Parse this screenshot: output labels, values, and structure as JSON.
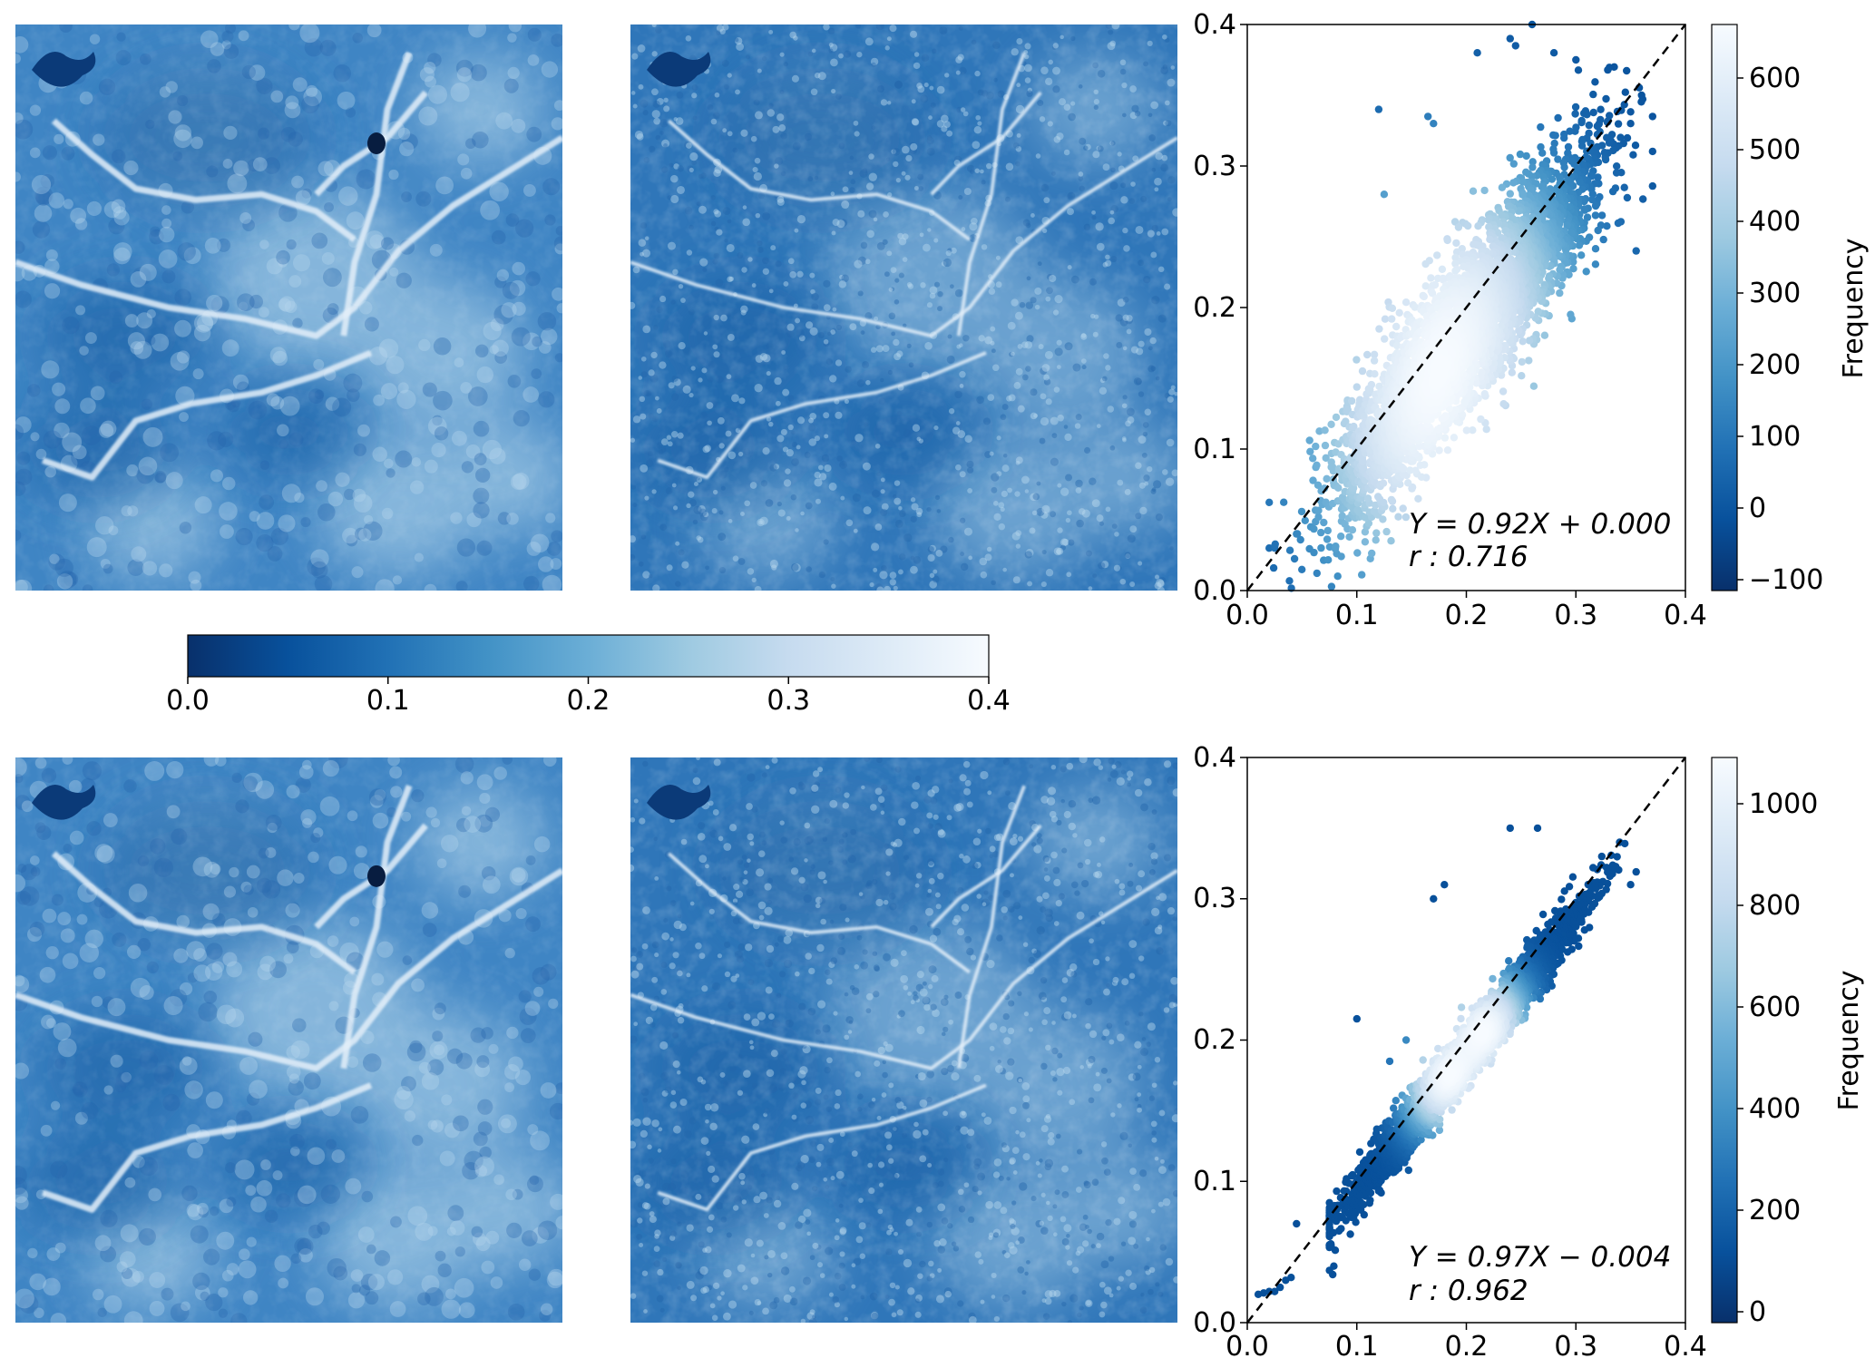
{
  "figure": {
    "shared_colorbar": {
      "ticks": [
        "0.0",
        "0.1",
        "0.2",
        "0.3",
        "0.4"
      ],
      "cmap": "Blues_r",
      "colors": [
        "#08306b",
        "#08519c",
        "#2171b5",
        "#4292c6",
        "#6baed6",
        "#9ecae1",
        "#c6dbef",
        "#deebf7",
        "#f7fbff"
      ]
    },
    "rows": [
      {
        "maps": [
          "predicted-map",
          "reference-map"
        ],
        "scatter": {
          "xticks": [
            "0.0",
            "0.1",
            "0.2",
            "0.3",
            "0.4"
          ],
          "yticks": [
            "0.0",
            "0.1",
            "0.2",
            "0.3",
            "0.4"
          ],
          "equation": "Y = 0.92X + 0.000",
          "r_text": "r : 0.716",
          "colorbar_label": "Frequency",
          "colorbar_ticks": [
            "−100",
            "0",
            "100",
            "200",
            "300",
            "400",
            "500",
            "600"
          ]
        }
      },
      {
        "maps": [
          "predicted-map",
          "reference-map"
        ],
        "scatter": {
          "xticks": [
            "0.0",
            "0.1",
            "0.2",
            "0.3",
            "0.4"
          ],
          "yticks": [
            "0.0",
            "0.1",
            "0.2",
            "0.3",
            "0.4"
          ],
          "equation": "Y = 0.97X − 0.004",
          "r_text": "r : 0.962",
          "colorbar_label": "Frequency",
          "colorbar_ticks": [
            "0",
            "200",
            "400",
            "600",
            "800",
            "1000"
          ]
        }
      }
    ]
  },
  "chart_data": [
    {
      "type": "scatter",
      "title": "",
      "xlabel": "",
      "ylabel": "",
      "xlim": [
        0.0,
        0.4
      ],
      "ylim": [
        0.0,
        0.4
      ],
      "grid": false,
      "reference_line": {
        "style": "dashed",
        "color": "#000000",
        "from": [
          0.0,
          0.0
        ],
        "to": [
          0.4,
          0.4
        ]
      },
      "fit": {
        "slope": 0.92,
        "intercept": 0.0,
        "r": 0.716
      },
      "density_colorbar": {
        "label": "Frequency",
        "range": [
          -120,
          680
        ]
      },
      "x_range": [
        0.02,
        0.37
      ],
      "spread": 0.028,
      "cores": [
        [
          0.2,
          0.21
        ],
        [
          0.15,
          0.1
        ]
      ],
      "outliers": [
        [
          0.02,
          0.03
        ],
        [
          0.025,
          0.03
        ],
        [
          0.045,
          0.04
        ],
        [
          0.058,
          0.045
        ],
        [
          0.065,
          0.052
        ],
        [
          0.165,
          0.335
        ],
        [
          0.17,
          0.33
        ],
        [
          0.21,
          0.38
        ],
        [
          0.24,
          0.39
        ],
        [
          0.245,
          0.385
        ],
        [
          0.26,
          0.4
        ],
        [
          0.28,
          0.38
        ],
        [
          0.3,
          0.375
        ],
        [
          0.35,
          0.33
        ],
        [
          0.36,
          0.35
        ],
        [
          0.355,
          0.24
        ],
        [
          0.37,
          0.335
        ],
        [
          0.335,
          0.37
        ],
        [
          0.31,
          0.3
        ],
        [
          0.12,
          0.34
        ],
        [
          0.125,
          0.28
        ]
      ]
    },
    {
      "type": "scatter",
      "title": "",
      "xlabel": "",
      "ylabel": "",
      "xlim": [
        0.0,
        0.4
      ],
      "ylim": [
        0.0,
        0.4
      ],
      "grid": false,
      "reference_line": {
        "style": "dashed",
        "color": "#000000",
        "from": [
          0.0,
          0.0
        ],
        "to": [
          0.4,
          0.4
        ]
      },
      "fit": {
        "slope": 0.97,
        "intercept": -0.004,
        "r": 0.962
      },
      "density_colorbar": {
        "label": "Frequency",
        "range": [
          -20,
          1090
        ]
      },
      "x_range": [
        0.075,
        0.355
      ],
      "spread": 0.01,
      "cores": [
        [
          0.18,
          0.17
        ],
        [
          0.22,
          0.21
        ]
      ],
      "outliers": [
        [
          0.01,
          0.02
        ],
        [
          0.015,
          0.021
        ],
        [
          0.02,
          0.022
        ],
        [
          0.025,
          0.022
        ],
        [
          0.03,
          0.025
        ],
        [
          0.035,
          0.03
        ],
        [
          0.04,
          0.032
        ],
        [
          0.045,
          0.07
        ],
        [
          0.075,
          0.037
        ],
        [
          0.078,
          0.034
        ],
        [
          0.079,
          0.04
        ],
        [
          0.1,
          0.215
        ],
        [
          0.13,
          0.185
        ],
        [
          0.145,
          0.2
        ],
        [
          0.17,
          0.3
        ],
        [
          0.18,
          0.31
        ],
        [
          0.24,
          0.35
        ],
        [
          0.265,
          0.35
        ],
        [
          0.35,
          0.31
        ],
        [
          0.34,
          0.34
        ]
      ]
    }
  ]
}
